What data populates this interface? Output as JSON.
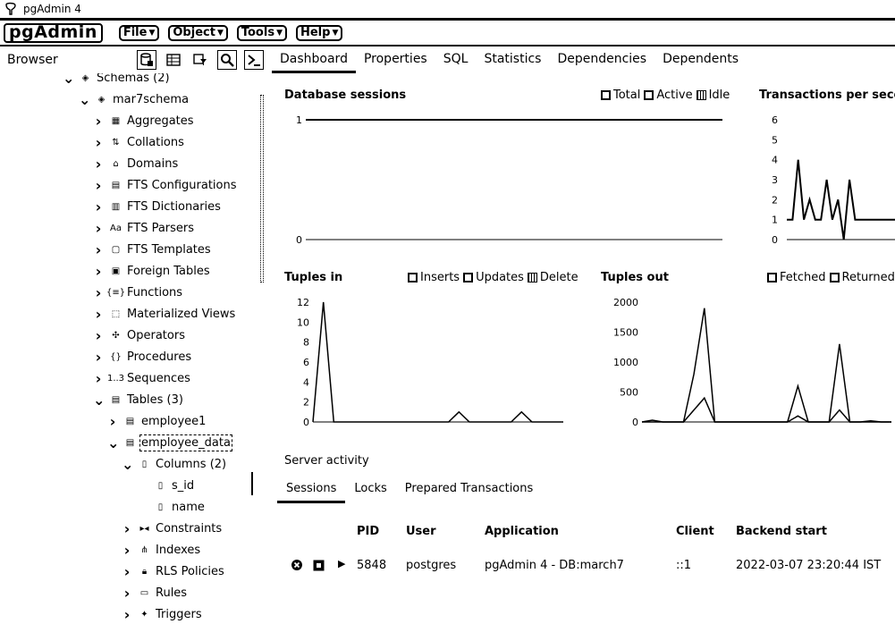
{
  "app": {
    "title": "pgAdmin 4",
    "logo": "pgAdmin"
  },
  "menu": [
    "File",
    "Object",
    "Tools",
    "Help"
  ],
  "browser_label": "Browser",
  "main_tabs": [
    "Dashboard",
    "Properties",
    "SQL",
    "Statistics",
    "Dependencies",
    "Dependents"
  ],
  "tree": [
    {
      "label": "Schemas (2)",
      "icon": "schemas-icon",
      "toggle": "v"
    },
    {
      "label": "mar7schema",
      "icon": "schema-icon",
      "toggle": "v"
    },
    {
      "label": "Aggregates",
      "icon": "aggregates-icon",
      "toggle": ">"
    },
    {
      "label": "Collations",
      "icon": "collations-icon",
      "toggle": ">"
    },
    {
      "label": "Domains",
      "icon": "domains-icon",
      "toggle": ">"
    },
    {
      "label": "FTS Configurations",
      "icon": "fts-configurations-icon",
      "toggle": ">"
    },
    {
      "label": "FTS Dictionaries",
      "icon": "fts-dictionaries-icon",
      "toggle": ">"
    },
    {
      "label": "FTS Parsers",
      "icon": "fts-parsers-icon",
      "toggle": ">"
    },
    {
      "label": "FTS Templates",
      "icon": "fts-templates-icon",
      "toggle": ">"
    },
    {
      "label": "Foreign Tables",
      "icon": "foreign-tables-icon",
      "toggle": ">"
    },
    {
      "label": "Functions",
      "icon": "functions-icon",
      "toggle": ">"
    },
    {
      "label": "Materialized Views",
      "icon": "materialized-views-icon",
      "toggle": ">"
    },
    {
      "label": "Operators",
      "icon": "operators-icon",
      "toggle": ">"
    },
    {
      "label": "Procedures",
      "icon": "procedures-icon",
      "toggle": ">"
    },
    {
      "label": "Sequences",
      "icon": "sequences-icon",
      "toggle": ">"
    },
    {
      "label": "Tables (3)",
      "icon": "tables-icon",
      "toggle": "v"
    },
    {
      "label": "employee1",
      "icon": "table-icon",
      "toggle": ">"
    },
    {
      "label": "employee_data",
      "icon": "table-icon",
      "toggle": "v"
    },
    {
      "label": "Columns (2)",
      "icon": "columns-icon",
      "toggle": "v"
    },
    {
      "label": "s_id",
      "icon": "column-icon",
      "toggle": ""
    },
    {
      "label": "name",
      "icon": "column-icon",
      "toggle": ""
    },
    {
      "label": "Constraints",
      "icon": "constraints-icon",
      "toggle": ">"
    },
    {
      "label": "Indexes",
      "icon": "indexes-icon",
      "toggle": ">"
    },
    {
      "label": "RLS Policies",
      "icon": "rls-policies-icon",
      "toggle": ">"
    },
    {
      "label": "Rules",
      "icon": "rules-icon",
      "toggle": ">"
    },
    {
      "label": "Triggers",
      "icon": "triggers-icon",
      "toggle": ">"
    }
  ],
  "tree_extra": {
    "sequences_glyph": "1..3",
    "fts_parsers_glyph": "Aa"
  },
  "charts": {
    "sessions": {
      "title": "Database sessions",
      "legend": [
        "Total",
        "Active",
        "Idle"
      ]
    },
    "transactions": {
      "title": "Transactions per second"
    },
    "tuples_in": {
      "title": "Tuples in",
      "legend": [
        "Inserts",
        "Updates",
        "Delete"
      ]
    },
    "tuples_out": {
      "title": "Tuples out",
      "legend": [
        "Fetched",
        "Returned"
      ]
    }
  },
  "chart_data": [
    {
      "type": "line",
      "title": "Database sessions",
      "series": [
        {
          "name": "Total",
          "values": [
            1,
            1,
            1,
            1,
            1,
            1,
            1,
            1,
            1,
            1
          ]
        }
      ],
      "yticks": [
        0,
        1
      ],
      "ylim": [
        0,
        1
      ]
    },
    {
      "type": "line",
      "title": "Transactions per second",
      "series": [
        {
          "values": [
            1,
            1,
            4,
            1,
            2,
            1,
            1,
            3,
            1,
            2,
            0,
            3,
            1,
            1,
            1,
            1,
            1,
            1,
            1,
            1
          ]
        }
      ],
      "yticks": [
        0,
        1,
        2,
        3,
        4,
        5,
        6
      ],
      "ylim": [
        0,
        6
      ]
    },
    {
      "type": "line",
      "title": "Tuples in",
      "series": [
        {
          "name": "Inserts",
          "values": [
            0,
            12,
            0,
            0,
            0,
            0,
            0,
            0,
            0,
            0,
            0,
            0,
            0,
            0,
            1,
            0,
            0,
            0,
            0,
            0,
            1,
            0,
            0,
            0,
            0
          ]
        }
      ],
      "yticks": [
        0,
        2,
        4,
        6,
        8,
        10,
        12
      ],
      "ylim": [
        0,
        12
      ]
    },
    {
      "type": "line",
      "title": "Tuples out",
      "series": [
        {
          "name": "Fetched",
          "values": [
            0,
            0,
            0,
            0,
            0,
            800,
            1900,
            0,
            0,
            0,
            0,
            0,
            0,
            0,
            0,
            600,
            0,
            0,
            0,
            1300,
            0,
            0,
            0,
            0,
            0
          ]
        },
        {
          "name": "Returned",
          "values": [
            0,
            30,
            0,
            0,
            0,
            200,
            400,
            0,
            0,
            0,
            0,
            0,
            0,
            0,
            0,
            100,
            0,
            0,
            0,
            200,
            0,
            0,
            20,
            0,
            0
          ]
        }
      ],
      "yticks": [
        0,
        500,
        1000,
        1500,
        2000
      ],
      "ylim": [
        0,
        2000
      ]
    }
  ],
  "server_activity": {
    "title": "Server activity",
    "tabs": [
      "Sessions",
      "Locks",
      "Prepared Transactions"
    ],
    "columns": [
      "PID",
      "User",
      "Application",
      "Client",
      "Backend start"
    ],
    "row": {
      "pid": "5848",
      "user": "postgres",
      "application": "pgAdmin 4 - DB:march7",
      "client": "::1",
      "backend_start": "2022-03-07 23:20:44 IST"
    }
  }
}
